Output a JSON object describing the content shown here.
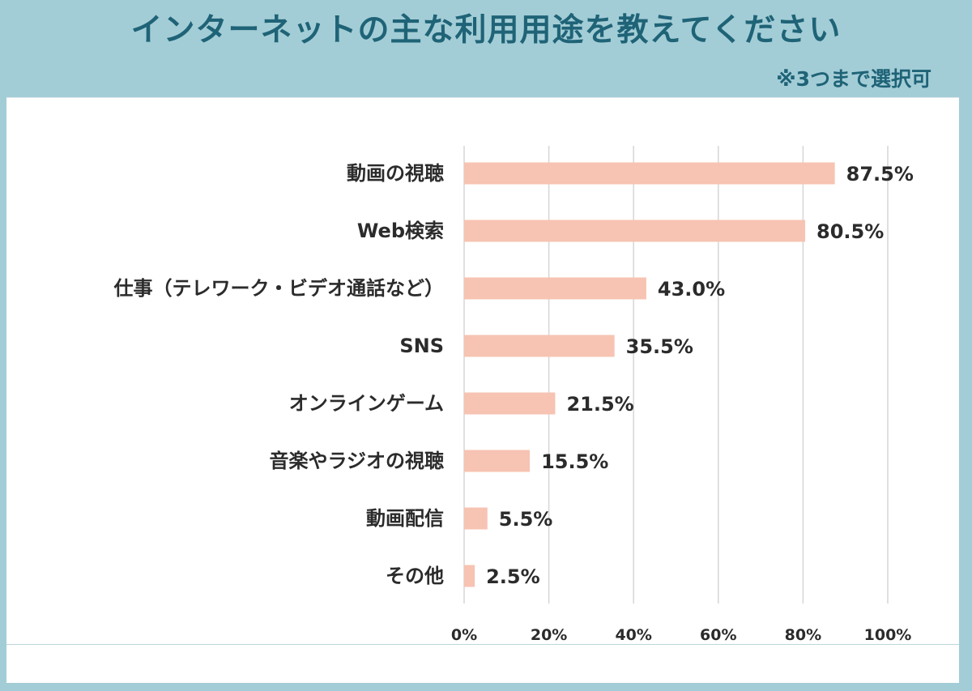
{
  "header": {
    "title": "インターネットの主な利用用途を教えてください",
    "note": "※3つまで選択可"
  },
  "colors": {
    "bar": "#f7c3b2",
    "grid": "#d6d6d6",
    "header_bg": "#a3cdd6",
    "title_text": "#1f6377"
  },
  "chart_data": {
    "type": "bar",
    "orientation": "horizontal",
    "title": "インターネットの主な利用用途を教えてください",
    "subtitle": "※3つまで選択可",
    "categories": [
      "動画の視聴",
      "Web検索",
      "仕事（テレワーク・ビデオ通話など）",
      "SNS",
      "オンラインゲーム",
      "音楽やラジオの視聴",
      "動画配信",
      "その他"
    ],
    "values": [
      87.5,
      80.5,
      43.0,
      35.5,
      21.5,
      15.5,
      5.5,
      2.5
    ],
    "value_labels": [
      "87.5%",
      "80.5%",
      "43.0%",
      "35.5%",
      "21.5%",
      "15.5%",
      "5.5%",
      "2.5%"
    ],
    "xlim": [
      0,
      100
    ],
    "xticks": [
      "0%",
      "20%",
      "40%",
      "60%",
      "80%",
      "100%"
    ],
    "grid": true,
    "xlabel": "",
    "ylabel": ""
  }
}
